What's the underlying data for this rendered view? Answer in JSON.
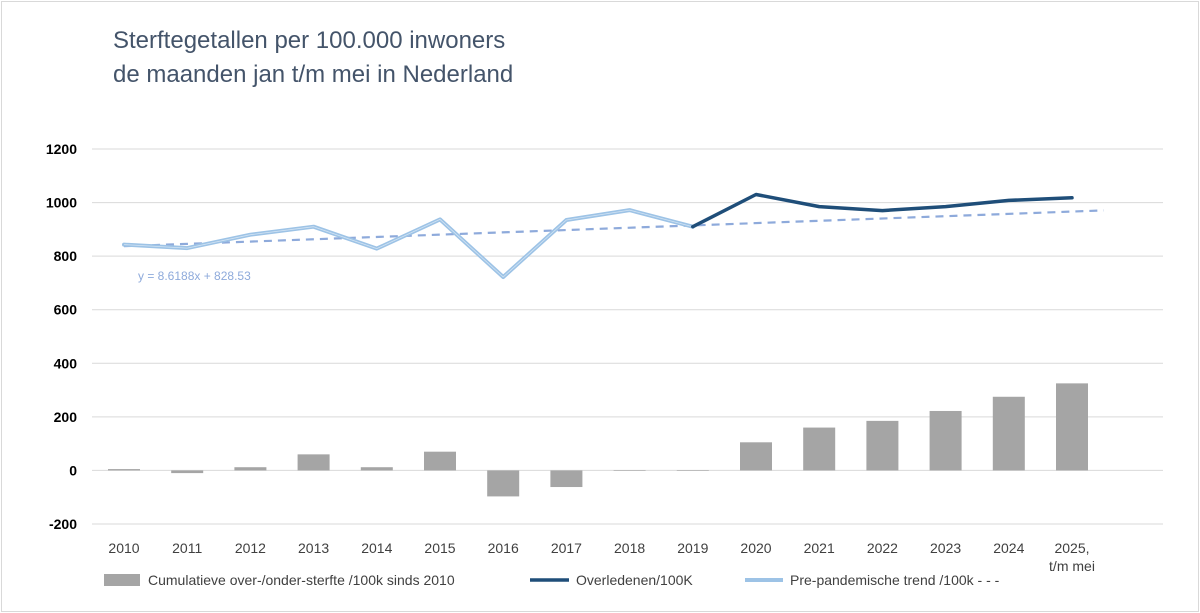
{
  "chart_data": {
    "type": "bar+line",
    "title_lines": [
      "Sterftegetallen per 100.000 inwoners",
      "de maanden jan t/m mei in Nederland"
    ],
    "categories": [
      "2010",
      "2011",
      "2012",
      "2013",
      "2014",
      "2015",
      "2016",
      "2017",
      "2018",
      "2019",
      "2020",
      "2021",
      "2022",
      "2023",
      "2024",
      "2025,|t/m mei"
    ],
    "ylim": [
      -200,
      1200
    ],
    "yticks": [
      -200,
      0,
      200,
      400,
      600,
      800,
      1000,
      1200
    ],
    "grid": true,
    "legend_position": "bottom",
    "series": [
      {
        "name": "Cumulatieve over-/onder-sterfte /100k sinds 2010",
        "kind": "bar",
        "color": "#a5a5a5",
        "values": [
          5,
          -10,
          12,
          60,
          12,
          70,
          -97,
          -62,
          -2,
          -2,
          105,
          160,
          185,
          222,
          275,
          325
        ]
      },
      {
        "name": "Overledenen/100K",
        "kind": "line",
        "color": "#1f4e79",
        "values": [
          null,
          null,
          null,
          null,
          null,
          null,
          null,
          null,
          null,
          910,
          1030,
          985,
          970,
          985,
          1008,
          1018
        ]
      },
      {
        "name": "Pre-pandemische trend /100k - - -",
        "kind": "line",
        "color": "#9dc3e6",
        "values": [
          843,
          830,
          880,
          910,
          828,
          937,
          722,
          935,
          972,
          910,
          null,
          null,
          null,
          null,
          null,
          null
        ]
      }
    ],
    "trendline": {
      "equation": "y = 8.6188x + 828.53",
      "slope": 8.6188,
      "intercept": 828.53,
      "style": "dashed",
      "color": "#8eaadb",
      "x_end_index": 16.5
    }
  },
  "colors": {
    "title": "#44546a",
    "grid": "#d9d9d9",
    "bar": "#a5a5a5",
    "overledenen": "#1f4e79",
    "prepandemic": "#9dc3e6",
    "trend": "#8eaadb"
  }
}
